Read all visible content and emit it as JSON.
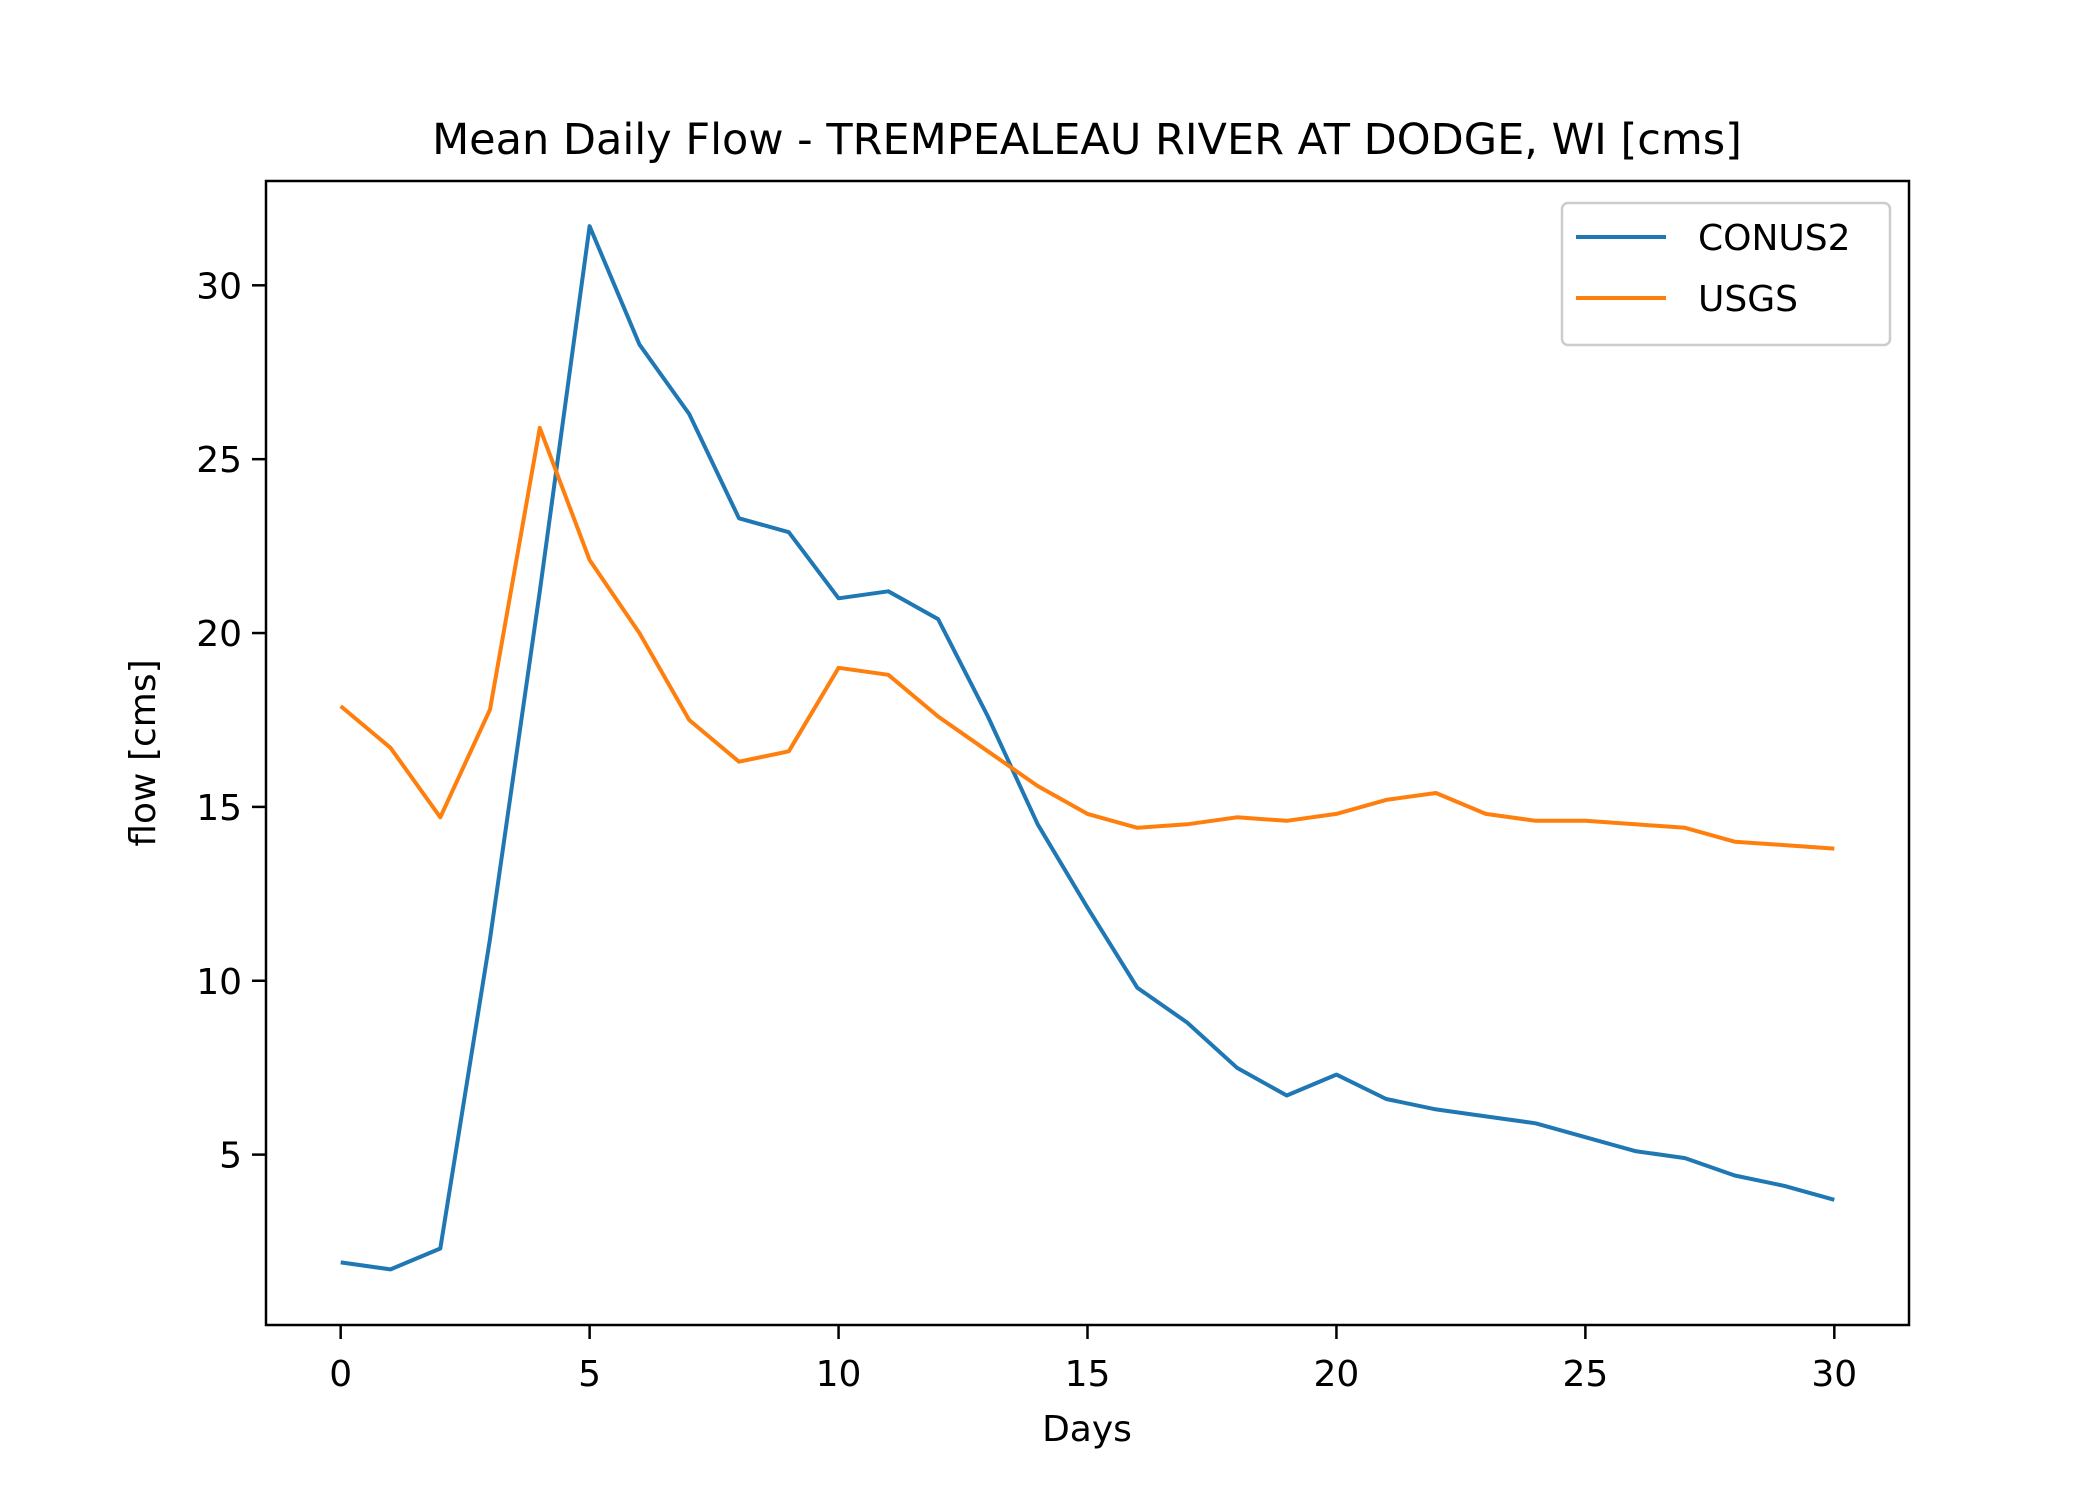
{
  "chart_data": {
    "type": "line",
    "title": "Mean Daily Flow - TREMPEALEAU RIVER AT DODGE, WI [cms]",
    "xlabel": "Days",
    "ylabel": "flow [cms]",
    "xlim": [
      -1.5,
      31.5
    ],
    "ylim": [
      0.1,
      33.0
    ],
    "x_ticks": [
      0,
      5,
      10,
      15,
      20,
      25,
      30
    ],
    "y_ticks": [
      5,
      10,
      15,
      20,
      25,
      30
    ],
    "x": [
      0,
      1,
      2,
      3,
      4,
      5,
      6,
      7,
      8,
      9,
      10,
      11,
      12,
      13,
      14,
      15,
      16,
      17,
      18,
      19,
      20,
      21,
      22,
      23,
      24,
      25,
      26,
      27,
      28,
      29,
      30
    ],
    "series": [
      {
        "name": "CONUS2",
        "color": "#1f77b4",
        "values": [
          1.9,
          1.7,
          2.3,
          11.2,
          21.2,
          31.7,
          28.3,
          26.3,
          23.3,
          22.9,
          21.0,
          21.2,
          20.4,
          17.6,
          14.5,
          12.1,
          9.8,
          8.8,
          7.5,
          6.7,
          7.3,
          6.6,
          6.3,
          6.1,
          5.9,
          5.5,
          5.1,
          4.9,
          4.4,
          4.1,
          3.7
        ]
      },
      {
        "name": "USGS",
        "color": "#ff7f0e",
        "values": [
          17.9,
          16.7,
          14.7,
          17.8,
          25.9,
          22.1,
          20.0,
          17.5,
          16.3,
          16.6,
          19.0,
          18.8,
          17.6,
          16.6,
          15.6,
          14.8,
          14.4,
          14.5,
          14.7,
          14.6,
          14.8,
          15.2,
          15.4,
          14.8,
          14.6,
          14.6,
          14.5,
          14.4,
          14.0,
          13.9,
          13.8
        ]
      }
    ],
    "legend_position": "top-right",
    "grid": false
  }
}
